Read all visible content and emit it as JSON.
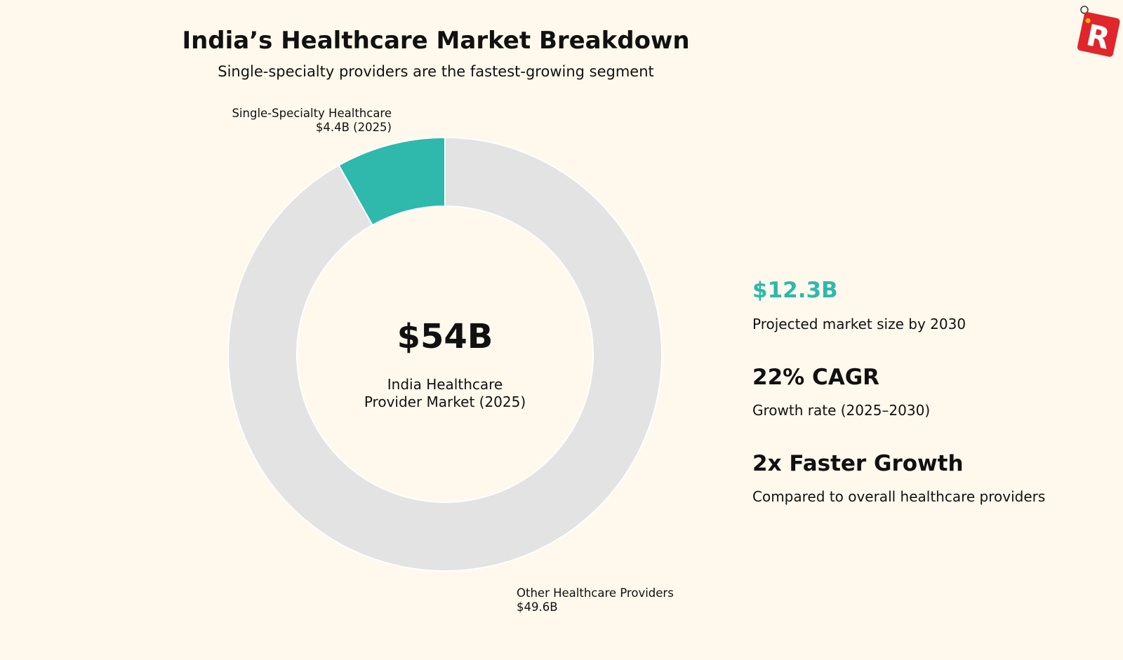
{
  "title": "India’s Healthcare Market Breakdown",
  "subtitle": "Single-specialty providers are the fastest-growing segment",
  "chart_data": {
    "type": "pie",
    "variant": "donut",
    "start": "top",
    "direction": "counterclockwise",
    "categories": [
      "Single-Specialty Healthcare",
      "Other Healthcare Providers"
    ],
    "values": [
      4.4,
      49.6
    ],
    "unit": "$B",
    "colors": [
      "#2fb8ac",
      "#e3e3e3"
    ],
    "labels": [
      {
        "name": "Single-Specialty Healthcare",
        "value": "$4.4B (2025)"
      },
      {
        "name": "Other Healthcare Providers",
        "value": "$49.6B"
      }
    ],
    "center": {
      "value": "$54B",
      "label_line1": "India Healthcare",
      "label_line2": "Provider Market (2025)"
    }
  },
  "stats": [
    {
      "value": "$12.3B",
      "desc": "Projected market size by 2030",
      "color": "#2fb8ac"
    },
    {
      "value": "22% CAGR",
      "desc": "Growth rate (2025–2030)",
      "color": "#111111"
    },
    {
      "value": "2x Faster Growth",
      "desc": "Compared to overall healthcare providers",
      "color": "#111111"
    }
  ],
  "logo": {
    "letter": "R",
    "color": "#e0262b"
  }
}
